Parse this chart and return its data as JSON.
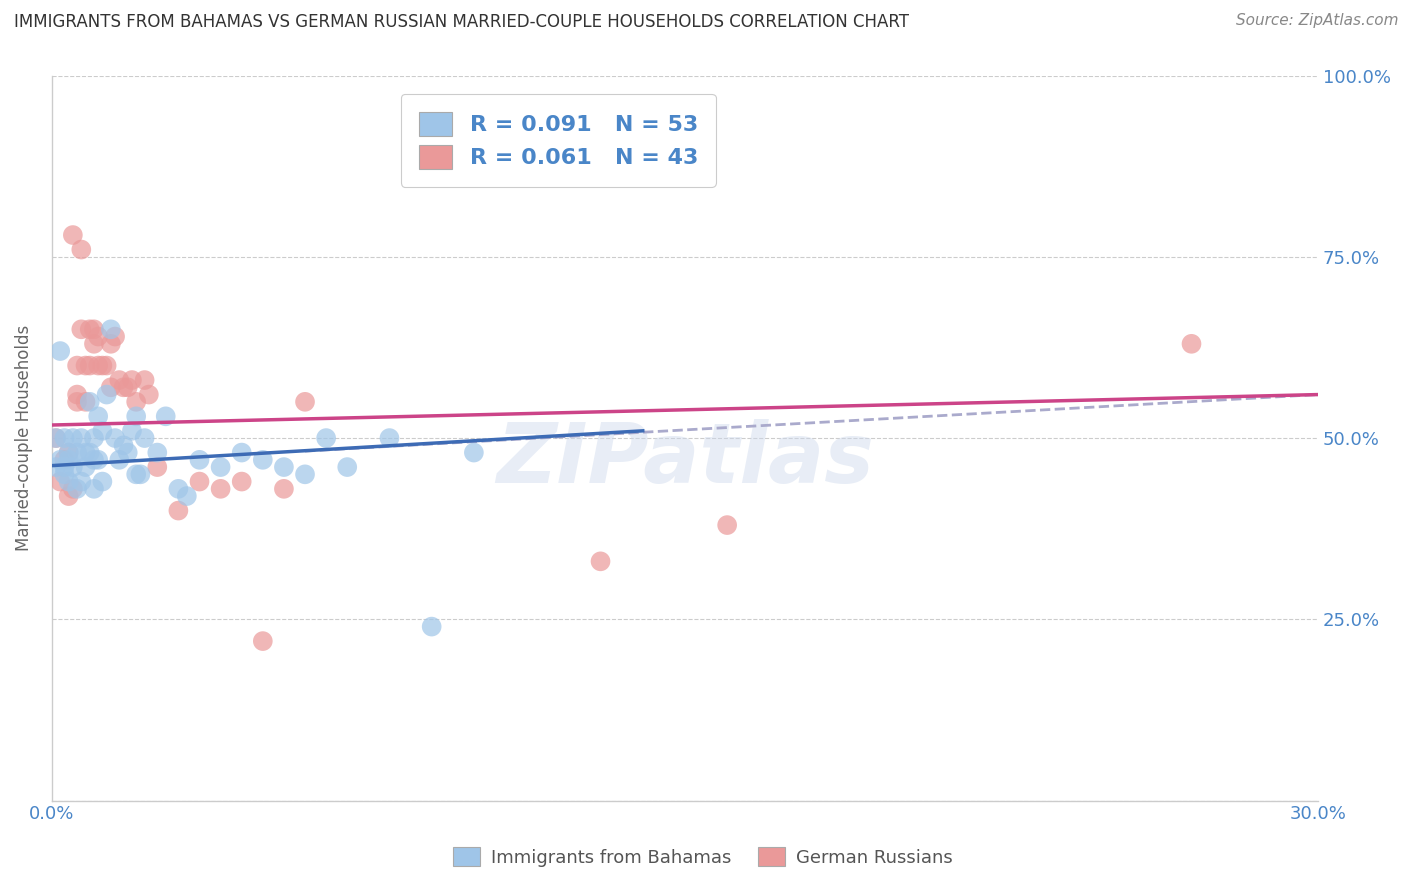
{
  "title": "IMMIGRANTS FROM BAHAMAS VS GERMAN RUSSIAN MARRIED-COUPLE HOUSEHOLDS CORRELATION CHART",
  "source": "Source: ZipAtlas.com",
  "ylabel": "Married-couple Households",
  "x_min": 0.0,
  "x_max": 0.3,
  "y_min": 0.0,
  "y_max": 1.0,
  "x_ticks": [
    0.0,
    0.05,
    0.1,
    0.15,
    0.2,
    0.25,
    0.3
  ],
  "x_tick_labels": [
    "0.0%",
    "",
    "",
    "",
    "",
    "",
    "30.0%"
  ],
  "y_ticks": [
    0.0,
    0.25,
    0.5,
    0.75,
    1.0
  ],
  "y_tick_labels": [
    "",
    "25.0%",
    "50.0%",
    "75.0%",
    "100.0%"
  ],
  "blue_color": "#9fc5e8",
  "pink_color": "#ea9999",
  "blue_line_color": "#3d6bb5",
  "pink_line_color": "#cc4488",
  "dashed_line_color": "#aaaacc",
  "legend_R1": "R = 0.091",
  "legend_N1": "N = 53",
  "legend_R2": "R = 0.061",
  "legend_N2": "N = 43",
  "watermark": "ZIPatlas",
  "background_color": "#ffffff",
  "grid_color": "#cccccc",
  "tick_color": "#4a86c8",
  "blue_scatter_x": [
    0.001,
    0.001,
    0.002,
    0.002,
    0.003,
    0.003,
    0.003,
    0.004,
    0.004,
    0.004,
    0.005,
    0.005,
    0.006,
    0.006,
    0.007,
    0.007,
    0.008,
    0.008,
    0.009,
    0.009,
    0.01,
    0.01,
    0.01,
    0.011,
    0.011,
    0.012,
    0.012,
    0.013,
    0.014,
    0.015,
    0.016,
    0.017,
    0.018,
    0.019,
    0.02,
    0.021,
    0.022,
    0.025,
    0.027,
    0.03,
    0.032,
    0.035,
    0.04,
    0.045,
    0.05,
    0.055,
    0.06,
    0.065,
    0.07,
    0.08,
    0.09,
    0.1,
    0.02
  ],
  "blue_scatter_y": [
    0.5,
    0.46,
    0.62,
    0.47,
    0.45,
    0.46,
    0.5,
    0.47,
    0.44,
    0.48,
    0.46,
    0.5,
    0.48,
    0.43,
    0.44,
    0.5,
    0.46,
    0.48,
    0.48,
    0.55,
    0.47,
    0.5,
    0.43,
    0.53,
    0.47,
    0.51,
    0.44,
    0.56,
    0.65,
    0.5,
    0.47,
    0.49,
    0.48,
    0.51,
    0.53,
    0.45,
    0.5,
    0.48,
    0.53,
    0.43,
    0.42,
    0.47,
    0.46,
    0.48,
    0.47,
    0.46,
    0.45,
    0.5,
    0.46,
    0.5,
    0.24,
    0.48,
    0.45
  ],
  "pink_scatter_x": [
    0.001,
    0.002,
    0.003,
    0.004,
    0.004,
    0.005,
    0.005,
    0.006,
    0.006,
    0.006,
    0.007,
    0.007,
    0.008,
    0.008,
    0.009,
    0.009,
    0.01,
    0.01,
    0.011,
    0.011,
    0.012,
    0.013,
    0.014,
    0.014,
    0.015,
    0.016,
    0.017,
    0.018,
    0.019,
    0.02,
    0.022,
    0.023,
    0.025,
    0.03,
    0.035,
    0.04,
    0.045,
    0.05,
    0.055,
    0.06,
    0.13,
    0.16,
    0.27
  ],
  "pink_scatter_y": [
    0.5,
    0.44,
    0.47,
    0.42,
    0.48,
    0.78,
    0.43,
    0.6,
    0.56,
    0.55,
    0.76,
    0.65,
    0.55,
    0.6,
    0.65,
    0.6,
    0.65,
    0.63,
    0.6,
    0.64,
    0.6,
    0.6,
    0.63,
    0.57,
    0.64,
    0.58,
    0.57,
    0.57,
    0.58,
    0.55,
    0.58,
    0.56,
    0.46,
    0.4,
    0.44,
    0.43,
    0.44,
    0.22,
    0.43,
    0.55,
    0.33,
    0.38,
    0.63
  ],
  "blue_line_x0": 0.0,
  "blue_line_x1": 0.14,
  "blue_line_y0": 0.462,
  "blue_line_y1": 0.51,
  "pink_line_x0": 0.0,
  "pink_line_x1": 0.3,
  "pink_line_y0": 0.518,
  "pink_line_y1": 0.56,
  "dashed_line_x0": 0.06,
  "dashed_line_x1": 0.3,
  "dashed_line_y0": 0.482,
  "dashed_line_y1": 0.56
}
